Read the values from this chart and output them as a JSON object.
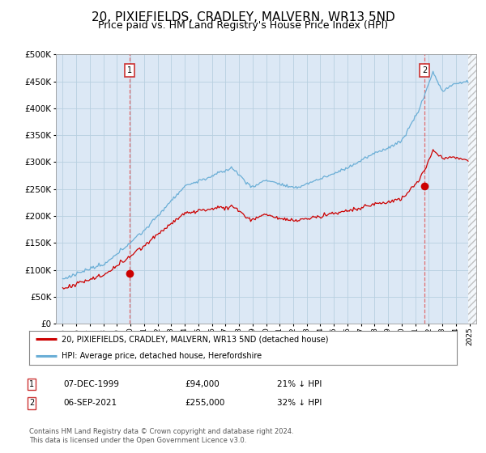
{
  "title": "20, PIXIEFIELDS, CRADLEY, MALVERN, WR13 5ND",
  "subtitle": "Price paid vs. HM Land Registry's House Price Index (HPI)",
  "title_fontsize": 11,
  "subtitle_fontsize": 9,
  "plot_bg_color": "#dce8f5",
  "fig_bg_color": "#ffffff",
  "grid_color": "#b8cfe0",
  "hpi_line_color": "#6aaed6",
  "price_line_color": "#cc0000",
  "dashed_line_color": "#e06060",
  "sale1_year": 1999.92,
  "sale1_price": 94000,
  "sale2_year": 2021.67,
  "sale2_price": 255000,
  "sale1_date": "07-DEC-1999",
  "sale2_date": "06-SEP-2021",
  "sale1_hpi_pct": "21% ↓ HPI",
  "sale2_hpi_pct": "32% ↓ HPI",
  "legend_entry1": "20, PIXIEFIELDS, CRADLEY, MALVERN, WR13 5ND (detached house)",
  "legend_entry2": "HPI: Average price, detached house, Herefordshire",
  "footer": "Contains HM Land Registry data © Crown copyright and database right 2024.\nThis data is licensed under the Open Government Licence v3.0.",
  "ylim": [
    0,
    500000
  ],
  "xlim_start": 1994.5,
  "xlim_end": 2025.5,
  "data_end": 2024.9,
  "yticks": [
    0,
    50000,
    100000,
    150000,
    200000,
    250000,
    300000,
    350000,
    400000,
    450000,
    500000
  ],
  "xticks": [
    1995,
    1996,
    1997,
    1998,
    1999,
    2000,
    2001,
    2002,
    2003,
    2004,
    2005,
    2006,
    2007,
    2008,
    2009,
    2010,
    2011,
    2012,
    2013,
    2014,
    2015,
    2016,
    2017,
    2018,
    2019,
    2020,
    2021,
    2022,
    2023,
    2024,
    2025
  ]
}
